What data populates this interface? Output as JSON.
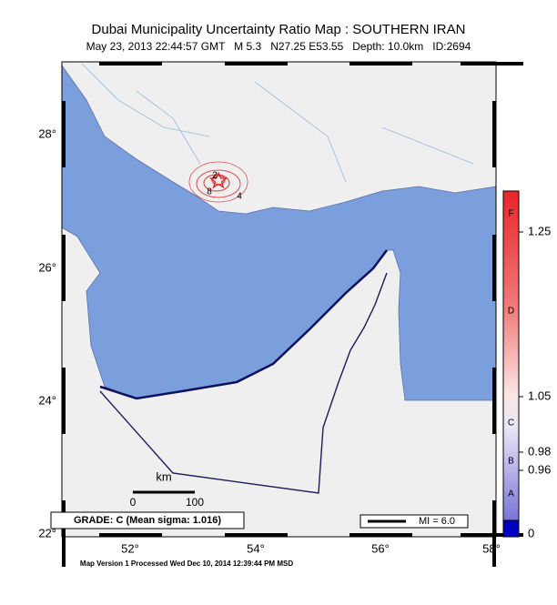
{
  "header": {
    "title": "Dubai Municipality Uncertainty Ratio Map : SOUTHERN IRAN",
    "subtitle": "May 23, 2013 22:44:57 GMT   M 5.3   N27.25 E53.55   Depth: 10.0km   ID:2694"
  },
  "map": {
    "lat_labels": [
      "28°",
      "26°",
      "24°",
      "22°"
    ],
    "lon_labels": [
      "52°",
      "54°",
      "56°",
      "58°"
    ],
    "contour_labels": [
      "2",
      "4",
      "8"
    ],
    "scale_bar": {
      "unit": "km",
      "start": "0",
      "end": "100"
    },
    "grade": "GRADE: C (Mean sigma: 1.016)",
    "mi_legend": "MI = 6.0"
  },
  "colorbar": {
    "grades": [
      "F",
      "D",
      "C",
      "B",
      "A"
    ],
    "values": [
      "1.25",
      "1.05",
      "0.98",
      "0.96",
      "0"
    ]
  },
  "footer": "Map Version 1 Processed Wed Dec 10, 2014 12:39:44 PM MSD"
}
